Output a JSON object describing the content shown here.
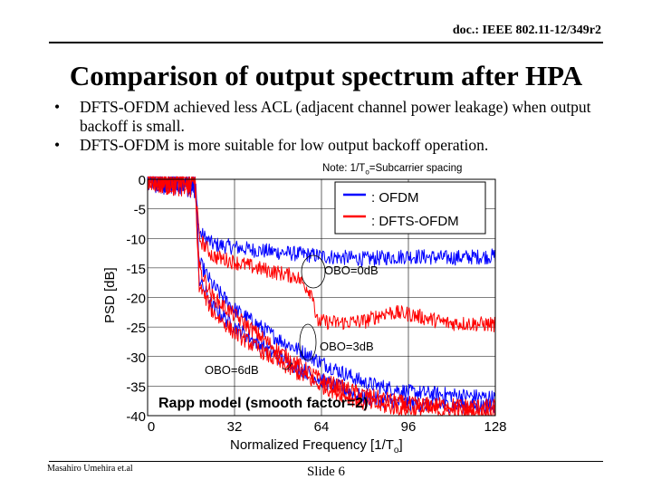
{
  "header": {
    "doc_id": "doc.: IEEE 802.11-12/349r2"
  },
  "slide": {
    "title": "Comparison of output spectrum after HPA",
    "bullets": [
      "DFTS-OFDM achieved less ACL (adjacent channel power leakage) when output backoff is small.",
      "DFTS-OFDM is more suitable for low output backoff operation."
    ],
    "bullet_symbol": "•",
    "note_prefix": "Note: 1/T",
    "note_subscript": "o",
    "note_suffix": "=Subcarrier spacing"
  },
  "chart_data": {
    "type": "line",
    "xlabel_prefix": "Normalized Frequency [1/T",
    "xlabel_subscript": "o",
    "xlabel_suffix": "]",
    "ylabel": "PSD [dB]",
    "xlim": [
      0,
      128
    ],
    "ylim": [
      -40,
      0
    ],
    "x_ticks": [
      0,
      32,
      64,
      96,
      128
    ],
    "y_ticks": [
      0,
      -5,
      -10,
      -15,
      -20,
      -25,
      -30,
      -35,
      -40
    ],
    "grid": true,
    "legend_position": "top-right",
    "series": [
      {
        "name": ": OFDM",
        "color": "#0000ff",
        "obo": [
          {
            "label": "OBO=0dB",
            "points": [
              [
                0,
                0
              ],
              [
                17.5,
                -1
              ],
              [
                19,
                -9
              ],
              [
                24,
                -11
              ],
              [
                40,
                -12
              ],
              [
                64,
                -13
              ],
              [
                80,
                -13.5
              ],
              [
                96,
                -13
              ],
              [
                110,
                -13.3
              ],
              [
                128,
                -13
              ]
            ]
          },
          {
            "label": "OBO=3dB",
            "points": [
              [
                0,
                0
              ],
              [
                17.5,
                -1
              ],
              [
                19,
                -14
              ],
              [
                24,
                -18
              ],
              [
                32,
                -22
              ],
              [
                48,
                -27
              ],
              [
                64,
                -31
              ],
              [
                80,
                -34.5
              ],
              [
                96,
                -36
              ],
              [
                112,
                -36.5
              ],
              [
                128,
                -37
              ]
            ]
          },
          {
            "label": "OBO=6dB",
            "points": [
              [
                0,
                0
              ],
              [
                17.5,
                -1
              ],
              [
                19,
                -17
              ],
              [
                24,
                -21.5
              ],
              [
                32,
                -25
              ],
              [
                48,
                -30
              ],
              [
                64,
                -34
              ],
              [
                80,
                -37
              ],
              [
                96,
                -38
              ],
              [
                128,
                -38.5
              ]
            ]
          }
        ]
      },
      {
        "name": ": DFTS-OFDM",
        "color": "#ff0000",
        "obo": [
          {
            "label": "OBO=0dB",
            "points": [
              [
                0,
                0
              ],
              [
                17.5,
                -1
              ],
              [
                19,
                -10
              ],
              [
                24,
                -13
              ],
              [
                40,
                -15
              ],
              [
                55,
                -16.5
              ],
              [
                61,
                -19.5
              ],
              [
                62,
                -24
              ],
              [
                70,
                -24.3
              ],
              [
                80,
                -24
              ],
              [
                88,
                -22.5
              ],
              [
                96,
                -22.8
              ],
              [
                110,
                -24.3
              ],
              [
                128,
                -24.6
              ]
            ]
          },
          {
            "label": "OBO=3dB",
            "points": [
              [
                0,
                0
              ],
              [
                17.5,
                -1
              ],
              [
                19,
                -15
              ],
              [
                24,
                -20
              ],
              [
                32,
                -23
              ],
              [
                48,
                -29
              ],
              [
                64,
                -34
              ],
              [
                80,
                -36.5
              ],
              [
                96,
                -38
              ],
              [
                128,
                -38.5
              ]
            ]
          },
          {
            "label": "OBO=6dB",
            "points": [
              [
                0,
                0
              ],
              [
                17.5,
                -1
              ],
              [
                19,
                -18
              ],
              [
                24,
                -22.5
              ],
              [
                32,
                -26
              ],
              [
                48,
                -31
              ],
              [
                64,
                -35
              ],
              [
                80,
                -38
              ],
              [
                96,
                -39
              ],
              [
                128,
                -39.5
              ]
            ]
          }
        ]
      }
    ],
    "annotations": {
      "obo0": "OBO=0dB",
      "obo3": "OBO=3dB",
      "obo6": "OBO=6dB",
      "model": "Rapp model (smooth factor=2)"
    }
  },
  "footer": {
    "authors": "Masahiro Umehira et.al",
    "slide_number": "Slide 6"
  },
  "colors": {
    "ofdm": "#0000ff",
    "dfts": "#ff0000",
    "text": "#000000"
  }
}
